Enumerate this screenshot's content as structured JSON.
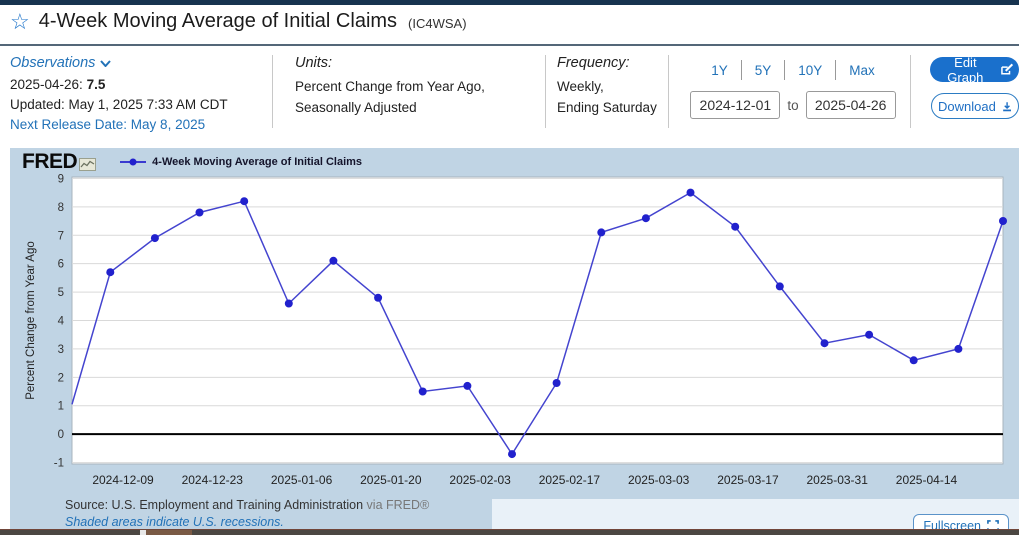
{
  "page": {
    "title": "4-Week Moving Average of Initial Claims",
    "series_id": "(IC4WSA)"
  },
  "meta": {
    "observations_label": "Observations",
    "latest_obs": "2025-04-26:",
    "latest_value": "7.5",
    "updated": "Updated: May 1, 2025 7:33 AM CDT",
    "next_release": "Next Release Date: May 8, 2025",
    "units_label": "Units:",
    "units_line1": "Percent Change from Year Ago,",
    "units_line2": "Seasonally Adjusted",
    "frequency_label": "Frequency:",
    "frequency_line1": "Weekly,",
    "frequency_line2": "Ending Saturday"
  },
  "range": {
    "presets": [
      "1Y",
      "5Y",
      "10Y",
      "Max"
    ],
    "start_date": "2024-12-01",
    "to_label": "to",
    "end_date": "2025-04-26"
  },
  "actions": {
    "edit_graph": "Edit Graph",
    "download": "Download",
    "fullscreen": "Fullscreen"
  },
  "chart": {
    "brand": "FRED",
    "legend": "4-Week Moving Average of Initial Claims",
    "source_main": "Source: U.S. Employment and Training Administration",
    "source_via": "via FRED®",
    "recession_note": "Shaded areas indicate U.S. recessions."
  },
  "colors": {
    "accent_blue": "#2272b8",
    "button_blue": "#1a70cc",
    "line": "#4444cf",
    "marker": "#2121cd",
    "chart_bg": "#c0d4e4",
    "plot_bg": "#ffffff",
    "grid": "#d9d9d9",
    "zero_line": "#000000",
    "panel_bg": "#e9f1f8"
  },
  "chart_data": {
    "type": "line",
    "title": "4-Week Moving Average of Initial Claims",
    "ylabel": "Percent Change from Year Ago",
    "x_start": "2024-12-01",
    "x_end": "2025-04-26",
    "ylim": [
      -1.05,
      9.05
    ],
    "yticks": [
      9,
      8,
      7,
      6,
      5,
      4,
      3,
      2,
      1,
      0,
      -1
    ],
    "xticks": [
      "2024-12-09",
      "2024-12-23",
      "2025-01-06",
      "2025-01-20",
      "2025-02-03",
      "2025-02-17",
      "2025-03-03",
      "2025-03-17",
      "2025-03-31",
      "2025-04-14"
    ],
    "grid": true,
    "legend_position": "top-left",
    "edge_start_value": 1.05,
    "series": [
      {
        "name": "4-Week Moving Average of Initial Claims",
        "points": [
          {
            "date": "2024-12-07",
            "value": 5.7
          },
          {
            "date": "2024-12-14",
            "value": 6.9
          },
          {
            "date": "2024-12-21",
            "value": 7.8
          },
          {
            "date": "2024-12-28",
            "value": 8.2
          },
          {
            "date": "2025-01-04",
            "value": 4.6
          },
          {
            "date": "2025-01-11",
            "value": 6.1
          },
          {
            "date": "2025-01-18",
            "value": 4.8
          },
          {
            "date": "2025-01-25",
            "value": 1.5
          },
          {
            "date": "2025-02-01",
            "value": 1.7
          },
          {
            "date": "2025-02-08",
            "value": -0.7
          },
          {
            "date": "2025-02-15",
            "value": 1.8
          },
          {
            "date": "2025-02-22",
            "value": 7.1
          },
          {
            "date": "2025-03-01",
            "value": 7.6
          },
          {
            "date": "2025-03-08",
            "value": 8.5
          },
          {
            "date": "2025-03-15",
            "value": 7.3
          },
          {
            "date": "2025-03-22",
            "value": 5.2
          },
          {
            "date": "2025-03-29",
            "value": 3.2
          },
          {
            "date": "2025-04-05",
            "value": 3.5
          },
          {
            "date": "2025-04-12",
            "value": 2.6
          },
          {
            "date": "2025-04-19",
            "value": 3.0
          },
          {
            "date": "2025-04-26",
            "value": 7.5
          }
        ]
      }
    ]
  }
}
